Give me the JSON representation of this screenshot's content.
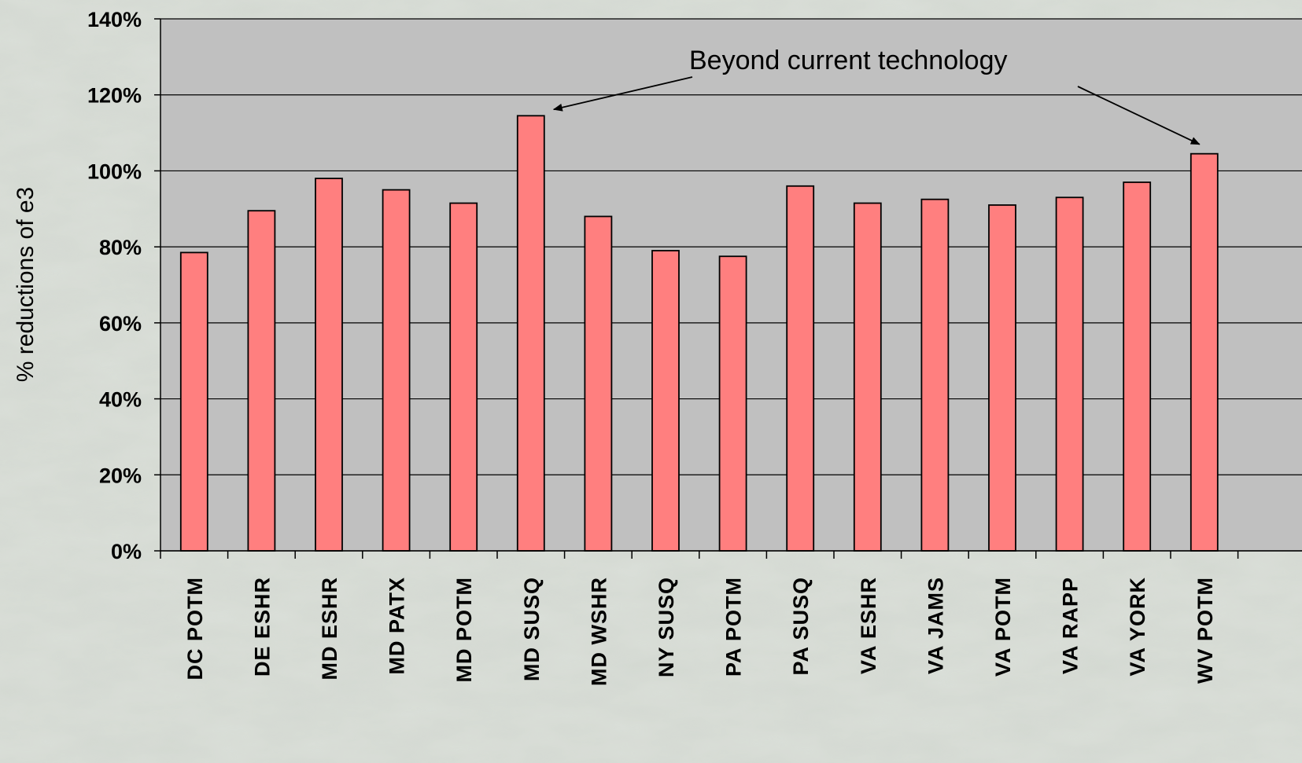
{
  "chart_data": {
    "type": "bar",
    "categories": [
      "DC POTM",
      "DE ESHR",
      "MD ESHR",
      "MD PATX",
      "MD POTM",
      "MD SUSQ",
      "MD WSHR",
      "NY SUSQ",
      "PA POTM",
      "PA SUSQ",
      "VA ESHR",
      "VA JAMS",
      "VA POTM",
      "VA RAPP",
      "VA YORK",
      "WV POTM"
    ],
    "values": [
      78.5,
      89.5,
      98,
      95,
      91.5,
      114.5,
      88,
      79,
      77.5,
      96,
      91.5,
      92.5,
      91,
      93,
      97,
      104.5
    ],
    "ylabel": "% reductions of e3",
    "ylim": [
      0,
      140
    ],
    "yticks": [
      "0%",
      "20%",
      "40%",
      "60%",
      "80%",
      "100%",
      "120%",
      "140%"
    ],
    "grid": true,
    "annotation": {
      "text": "Beyond current technology",
      "targets": [
        "MD SUSQ",
        "WV POTM"
      ]
    },
    "colors": {
      "bar": "#ff7f7f",
      "plot_background": "#c0c0c0",
      "bar_edge": "#000000"
    }
  }
}
